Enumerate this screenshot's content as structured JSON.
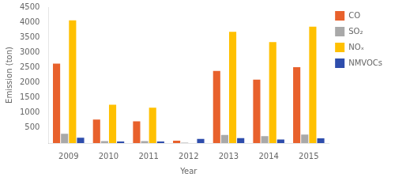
{
  "chart_data": {
    "type": "bar",
    "xlabel": "Year",
    "ylabel": "Emission (ton)",
    "categories": [
      "2009",
      "2010",
      "2011",
      "2012",
      "2013",
      "2014",
      "2015"
    ],
    "series": [
      {
        "name": "CO",
        "color": "#E8612C",
        "values": [
          2630,
          780,
          720,
          80,
          2390,
          2100,
          2510
        ]
      },
      {
        "name": "SO₂",
        "color": "#A9A9A9",
        "values": [
          305,
          65,
          65,
          10,
          270,
          230,
          280
        ]
      },
      {
        "name": "NOₓ",
        "color": "#FFC000",
        "values": [
          4060,
          1270,
          1170,
          0,
          3680,
          3340,
          3850
        ]
      },
      {
        "name": "NMVOCs",
        "color": "#2E4DAC",
        "values": [
          175,
          55,
          50,
          140,
          165,
          115,
          155
        ]
      }
    ],
    "ylim": [
      0,
      4500
    ],
    "yticks": [
      {
        "value": 0,
        "label": ""
      },
      500,
      1000,
      1500,
      2000,
      2500,
      3000,
      3500,
      4000,
      4500
    ],
    "grid": false,
    "legend": "right"
  }
}
